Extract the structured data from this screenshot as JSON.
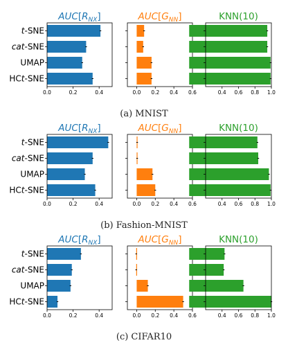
{
  "colors": {
    "blue": "#1f77b4",
    "orange": "#ff7f0e",
    "green": "#2ca02c"
  },
  "panel_titles": [
    {
      "pre": "AUC",
      "open": "[",
      "var": "R",
      "sub": "NX",
      "close": "]",
      "color": "blue",
      "italic": true
    },
    {
      "pre": "AUC",
      "open": "[",
      "var": "G",
      "sub": "NN",
      "close": "]",
      "color": "orange",
      "italic": true
    },
    {
      "pre": "KNN(10)",
      "open": "",
      "var": "",
      "sub": "",
      "close": "",
      "color": "green",
      "italic": false
    }
  ],
  "category_labels": [
    {
      "pre": "",
      "it": "t",
      "post": "-SNE"
    },
    {
      "pre": "",
      "it": "cat",
      "post": "-SNE"
    },
    {
      "pre": "UMAP",
      "it": "",
      "post": ""
    },
    {
      "pre": "HC",
      "it": "t",
      "post": "-SNE"
    }
  ],
  "chart_data": [
    {
      "caption": "(a) MNIST",
      "type": "bar",
      "orientation": "horizontal",
      "categories": [
        "t-SNE",
        "cat-SNE",
        "UMAP",
        "HCt-SNE"
      ],
      "panels": [
        {
          "title": "AUC[R_NX]",
          "color": "blue",
          "values": [
            0.41,
            0.3,
            0.27,
            0.35
          ],
          "errors": [
            0.005,
            0.005,
            0.005,
            0.005
          ],
          "xlim": [
            0,
            0.5
          ],
          "ticks": [
            0.0,
            0.2,
            0.4
          ],
          "tick_labels": [
            "0.0",
            "0.2",
            "0.4"
          ]
        },
        {
          "title": "AUC[G_NN]",
          "color": "orange",
          "values": [
            0.08,
            0.07,
            0.16,
            0.16
          ],
          "errors": [
            0.005,
            0.005,
            0.004,
            0.004
          ],
          "xlim": [
            -0.1,
            0.6
          ],
          "ticks": [
            0.0,
            0.2,
            0.4,
            0.6
          ],
          "tick_labels": [
            "0.0",
            "0.2",
            "0.4",
            "0.6"
          ]
        },
        {
          "title": "KNN(10)",
          "color": "green",
          "values": [
            0.95,
            0.95,
            0.99,
            0.99
          ],
          "errors": [
            0.003,
            0.003,
            0.002,
            0.002
          ],
          "xlim": [
            0.2,
            1.0
          ],
          "ticks": [
            0.4,
            0.6,
            0.8,
            1.0
          ],
          "tick_labels": [
            "0.4",
            "0.6",
            "0.8",
            "1.0"
          ]
        }
      ]
    },
    {
      "caption": "(b) Fashion-MNIST",
      "type": "bar",
      "orientation": "horizontal",
      "categories": [
        "t-SNE",
        "cat-SNE",
        "UMAP",
        "HCt-SNE"
      ],
      "panels": [
        {
          "title": "AUC[R_NX]",
          "color": "blue",
          "values": [
            0.47,
            0.35,
            0.29,
            0.37
          ],
          "errors": [
            0.005,
            0.005,
            0.005,
            0.005
          ],
          "xlim": [
            0,
            0.5
          ],
          "ticks": [
            0.0,
            0.2,
            0.4
          ],
          "tick_labels": [
            "0.0",
            "0.2",
            "0.4"
          ]
        },
        {
          "title": "AUC[G_NN]",
          "color": "orange",
          "values": [
            0.005,
            0.005,
            0.17,
            0.2
          ],
          "errors": [
            0.003,
            0.003,
            0.004,
            0.004
          ],
          "xlim": [
            -0.1,
            0.6
          ],
          "ticks": [
            0.0,
            0.2,
            0.4,
            0.6
          ],
          "tick_labels": [
            "0.0",
            "0.2",
            "0.4",
            "0.6"
          ]
        },
        {
          "title": "KNN(10)",
          "color": "green",
          "values": [
            0.83,
            0.84,
            0.97,
            0.99
          ],
          "errors": [
            0.003,
            0.003,
            0.002,
            0.002
          ],
          "xlim": [
            0.2,
            1.0
          ],
          "ticks": [
            0.4,
            0.6,
            0.8,
            1.0
          ],
          "tick_labels": [
            "0.4",
            "0.6",
            "0.8",
            "1.0"
          ]
        }
      ]
    },
    {
      "caption": "(c) CIFAR10",
      "type": "bar",
      "orientation": "horizontal",
      "categories": [
        "t-SNE",
        "cat-SNE",
        "UMAP",
        "HCt-SNE"
      ],
      "panels": [
        {
          "title": "AUC[R_NX]",
          "color": "blue",
          "values": [
            0.26,
            0.19,
            0.18,
            0.08
          ],
          "errors": [
            0.005,
            0.005,
            0.005,
            0.003
          ],
          "xlim": [
            0,
            0.5
          ],
          "ticks": [
            0.0,
            0.2,
            0.4
          ],
          "tick_labels": [
            "0.0",
            "0.2",
            "0.4"
          ]
        },
        {
          "title": "AUC[G_NN]",
          "color": "orange",
          "values": [
            -0.005,
            -0.005,
            0.12,
            0.5
          ],
          "errors": [
            0.003,
            0.003,
            0.005,
            0.005
          ],
          "xlim": [
            -0.1,
            0.6
          ],
          "ticks": [
            0.0,
            0.2,
            0.4,
            0.6
          ],
          "tick_labels": [
            "0.0",
            "0.2",
            "0.4",
            "0.6"
          ]
        },
        {
          "title": "KNN(10)",
          "color": "green",
          "values": [
            0.43,
            0.42,
            0.66,
            1.0
          ],
          "errors": [
            0.002,
            0.002,
            0.002,
            0.002
          ],
          "xlim": [
            0.2,
            1.0
          ],
          "ticks": [
            0.4,
            0.6,
            0.8,
            1.0
          ],
          "tick_labels": [
            "0.4",
            "0.6",
            "0.8",
            "1.0"
          ]
        }
      ]
    }
  ]
}
